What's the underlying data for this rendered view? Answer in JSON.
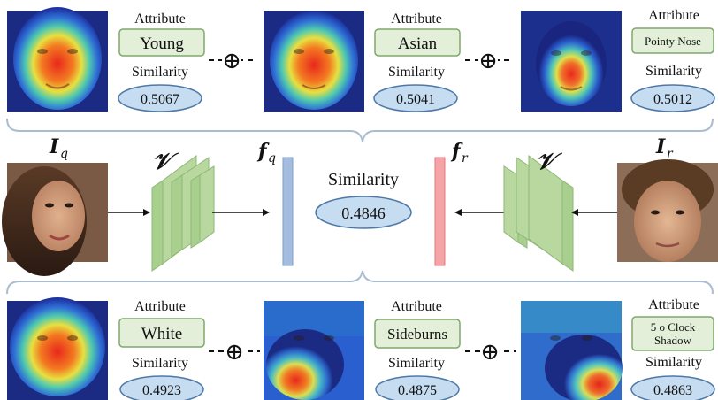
{
  "top_row": [
    {
      "attribute_title": "Attribute",
      "attribute": "Young",
      "similarity_title": "Similarity",
      "similarity": "0.5067"
    },
    {
      "attribute_title": "Attribute",
      "attribute": "Asian",
      "similarity_title": "Similarity",
      "similarity": "0.5041"
    },
    {
      "attribute_title": "Attribute",
      "attribute": "Pointy Nose",
      "similarity_title": "Similarity",
      "similarity": "0.5012"
    }
  ],
  "bottom_row": [
    {
      "attribute_title": "Attribute",
      "attribute": "White",
      "similarity_title": "Similarity",
      "similarity": "0.4923"
    },
    {
      "attribute_title": "Attribute",
      "attribute": "Sideburns",
      "similarity_title": "Similarity",
      "similarity": "0.4875"
    },
    {
      "attribute_title": "Attribute",
      "attribute_lines": [
        "5 o Clock",
        "Shadow"
      ],
      "similarity_title": "Similarity",
      "similarity": "0.4863"
    }
  ],
  "combine_symbol": "⊕",
  "center": {
    "query_image_label": "I",
    "query_image_sub": "q",
    "ref_image_label": "I",
    "ref_image_sub": "r",
    "encoder_label": "𝒱",
    "query_feature_label": "f",
    "query_feature_sub": "q",
    "ref_feature_label": "f",
    "ref_feature_sub": "r",
    "similarity_title": "Similarity",
    "similarity": "0.4846"
  },
  "colors": {
    "attr_box_fill": "#e3efd9",
    "attr_box_stroke": "#7fa86a",
    "sim_ellipse_fill": "#c6dcf0",
    "sim_ellipse_stroke": "#4e79a7",
    "encoder_fill": "#a9cf8f",
    "feature_q": "#a4bddf",
    "feature_r": "#f4a3a7",
    "brace": "#a9bcd0"
  }
}
